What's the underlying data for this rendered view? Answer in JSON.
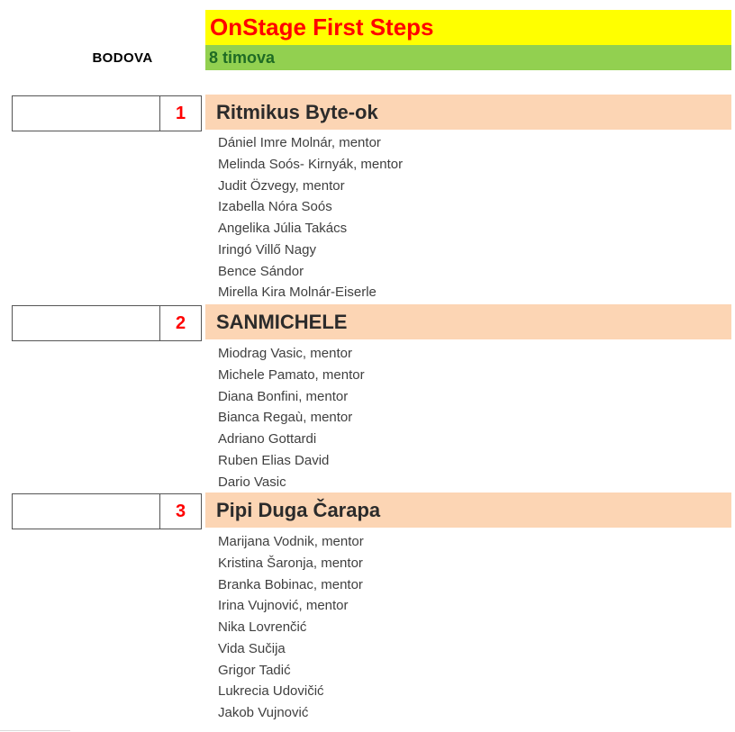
{
  "header": {
    "title": "OnStage First Steps",
    "subtitle": "8 timova",
    "left_label": "BODOVA",
    "colors": {
      "title_bg": "#FFFF00",
      "title_text": "#FF0000",
      "subtitle_bg": "#92D050",
      "subtitle_text": "#1F6B24"
    }
  },
  "teams": [
    {
      "rank": "1",
      "name": "Ritmikus Byte-ok",
      "score": "",
      "members": [
        "Dániel Imre Molnár, mentor",
        "Melinda Soós- Kirnyák, mentor",
        "Judit Özvegy, mentor",
        "Izabella Nóra Soós",
        "Angelika Júlia Takács",
        "Iringó Villő Nagy",
        "Bence Sándor",
        "Mirella Kira Molnár-Eiserle"
      ]
    },
    {
      "rank": "2",
      "name": "SANMICHELE",
      "score": "",
      "members": [
        "Miodrag Vasic, mentor",
        "Michele Pamato, mentor",
        "Diana Bonfini, mentor",
        "Bianca Regaù, mentor",
        "Adriano Gottardi",
        "Ruben Elias David",
        "Dario Vasic"
      ]
    },
    {
      "rank": "3",
      "name": "Pipi Duga Čarapa",
      "score": "",
      "members": [
        "Marijana Vodnik, mentor",
        "Kristina Šaronja, mentor",
        "Branka Bobinac, mentor",
        "Irina Vujnović, mentor",
        "Nika Lovrenčić",
        "Vida Sučija",
        "Grigor Tadić",
        "Lukrecia Udovičić",
        "Jakob Vujnović"
      ]
    }
  ],
  "style_colors": {
    "team_band_bg": "#FCD5B4",
    "rank_text": "#FF0000",
    "member_text": "#3f3f3f",
    "box_border": "#555555"
  }
}
